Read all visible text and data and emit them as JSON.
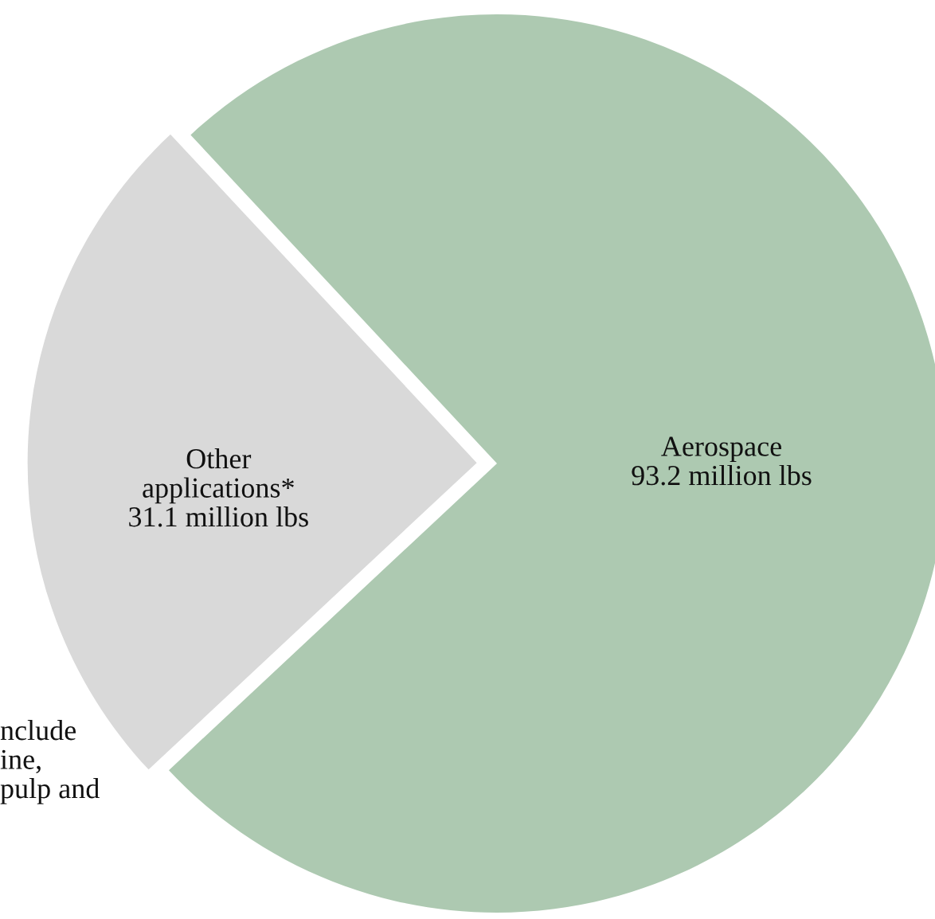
{
  "chart_data": {
    "type": "pie",
    "categories": [
      "Other\napplications*",
      "Aerospace"
    ],
    "values": [
      31.1,
      93.2
    ],
    "value_labels": [
      "31.1 million lbs",
      "93.2 million lbs"
    ],
    "colors": [
      "#d9d9d9",
      "#adc9b1"
    ],
    "legend": false,
    "annotations": [
      "nclude\nine,\npulp and"
    ]
  }
}
